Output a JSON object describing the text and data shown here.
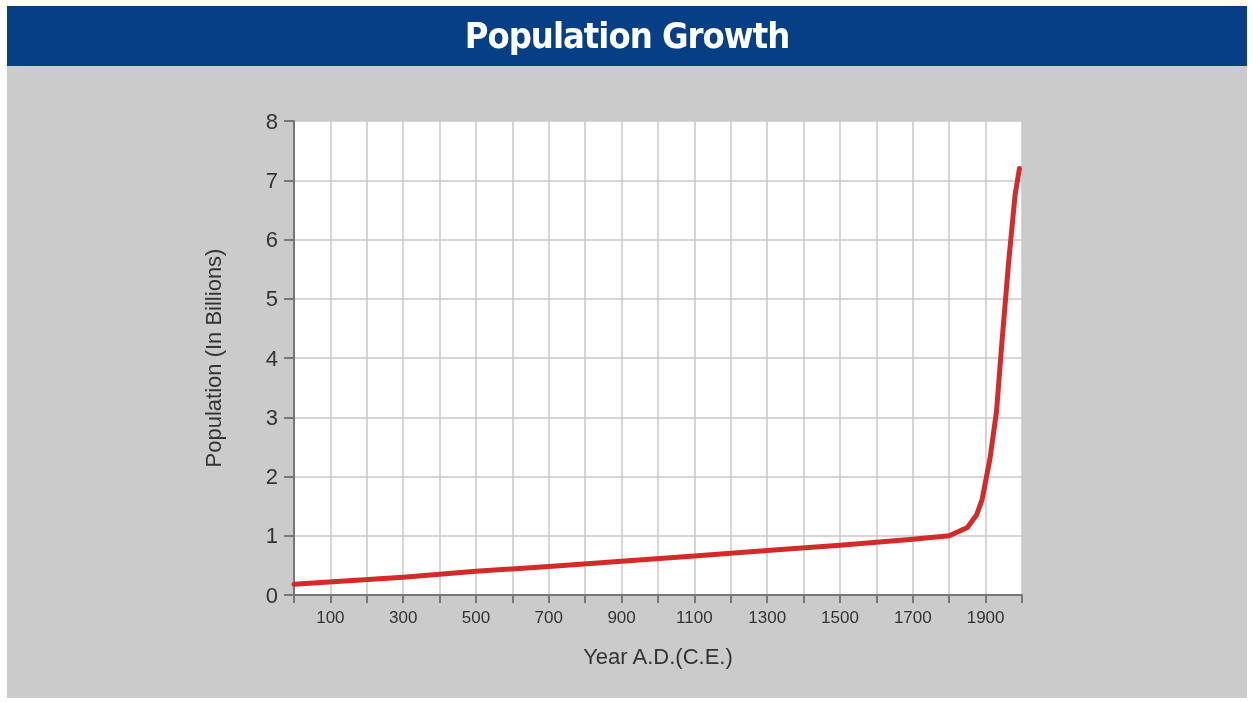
{
  "chart_data": {
    "type": "line",
    "title": "Population Growth",
    "xlabel": "Year A.D.(C.E.)",
    "ylabel": "Population (In Billions)",
    "x": [
      0,
      300,
      500,
      700,
      900,
      1100,
      1300,
      1500,
      1700,
      1800,
      1850,
      1875,
      1890,
      1912,
      1930,
      1944,
      1963,
      1981,
      1993
    ],
    "series": [
      {
        "color": "#d42a2a",
        "values": [
          0.18,
          0.3,
          0.4,
          0.48,
          0.57,
          0.66,
          0.75,
          0.84,
          0.94,
          1.0,
          1.14,
          1.35,
          1.6,
          2.3,
          3.1,
          4.2,
          5.6,
          6.75,
          7.2
        ]
      }
    ],
    "xlim": [
      0,
      2000
    ],
    "xticks": [
      {
        "value": 0,
        "label": null
      },
      100,
      {
        "value": 200,
        "label": null
      },
      300,
      {
        "value": 400,
        "label": null
      },
      500,
      {
        "value": 600,
        "label": null
      },
      700,
      {
        "value": 800,
        "label": null
      },
      900,
      {
        "value": 1000,
        "label": null
      },
      1100,
      {
        "value": 1200,
        "label": null
      },
      1300,
      {
        "value": 1400,
        "label": null
      },
      1500,
      {
        "value": 1600,
        "label": null
      },
      1700,
      {
        "value": 1800,
        "label": null
      },
      1900,
      {
        "value": 2000,
        "label": null
      }
    ],
    "ylim": [
      0,
      8
    ],
    "yticks": [
      0,
      1,
      2,
      3,
      4,
      5,
      6,
      7,
      8
    ],
    "grid": true,
    "marker": "none",
    "line_style": "solid"
  }
}
